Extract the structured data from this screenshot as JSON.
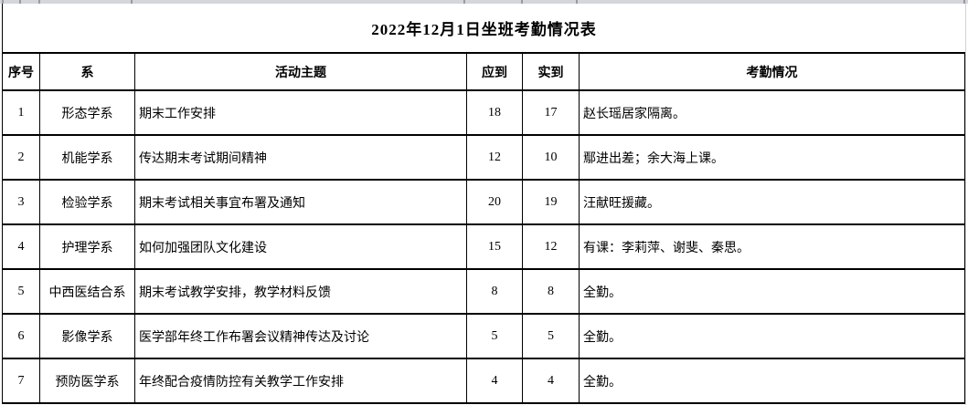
{
  "title": "2022年12月1日坐班考勤情况表",
  "table": {
    "columns": [
      {
        "key": "index",
        "label": "序号"
      },
      {
        "key": "dept",
        "label": "系"
      },
      {
        "key": "topic",
        "label": "活动主题"
      },
      {
        "key": "expected",
        "label": "应到"
      },
      {
        "key": "actual",
        "label": "实到"
      },
      {
        "key": "attendance",
        "label": "考勤情况"
      }
    ],
    "rows": [
      {
        "index": "1",
        "dept": "形态学系",
        "topic": "期末工作安排",
        "expected": "18",
        "actual": "17",
        "attendance": "赵长瑶居家隔离。"
      },
      {
        "index": "2",
        "dept": "机能学系",
        "topic": "传达期末考试期间精神",
        "expected": "12",
        "actual": "10",
        "attendance": "鄢进出差；余大海上课。"
      },
      {
        "index": "3",
        "dept": "检验学系",
        "topic": "期末考试相关事宜布署及通知",
        "expected": "20",
        "actual": "19",
        "attendance": "汪献旺援藏。"
      },
      {
        "index": "4",
        "dept": "护理学系",
        "topic": "如何加强团队文化建设",
        "expected": "15",
        "actual": "12",
        "attendance": "有课：李莉萍、谢斐、秦思。"
      },
      {
        "index": "5",
        "dept": "中西医结合系",
        "topic": "期末考试教学安排，教学材料反馈",
        "expected": "8",
        "actual": "8",
        "attendance": "全勤。"
      },
      {
        "index": "6",
        "dept": "影像学系",
        "topic": "医学部年终工作布署会议精神传达及讨论",
        "expected": "5",
        "actual": "5",
        "attendance": "全勤。"
      },
      {
        "index": "7",
        "dept": "预防医学系",
        "topic": "年终配合疫情防控有关教学工作安排",
        "expected": "4",
        "actual": "4",
        "attendance": "全勤。"
      }
    ]
  },
  "colors": {
    "table_border": "#000000",
    "background": "#ffffff",
    "sheet_strip": "#d4d6da",
    "sheet_line": "#d0d2d6"
  }
}
